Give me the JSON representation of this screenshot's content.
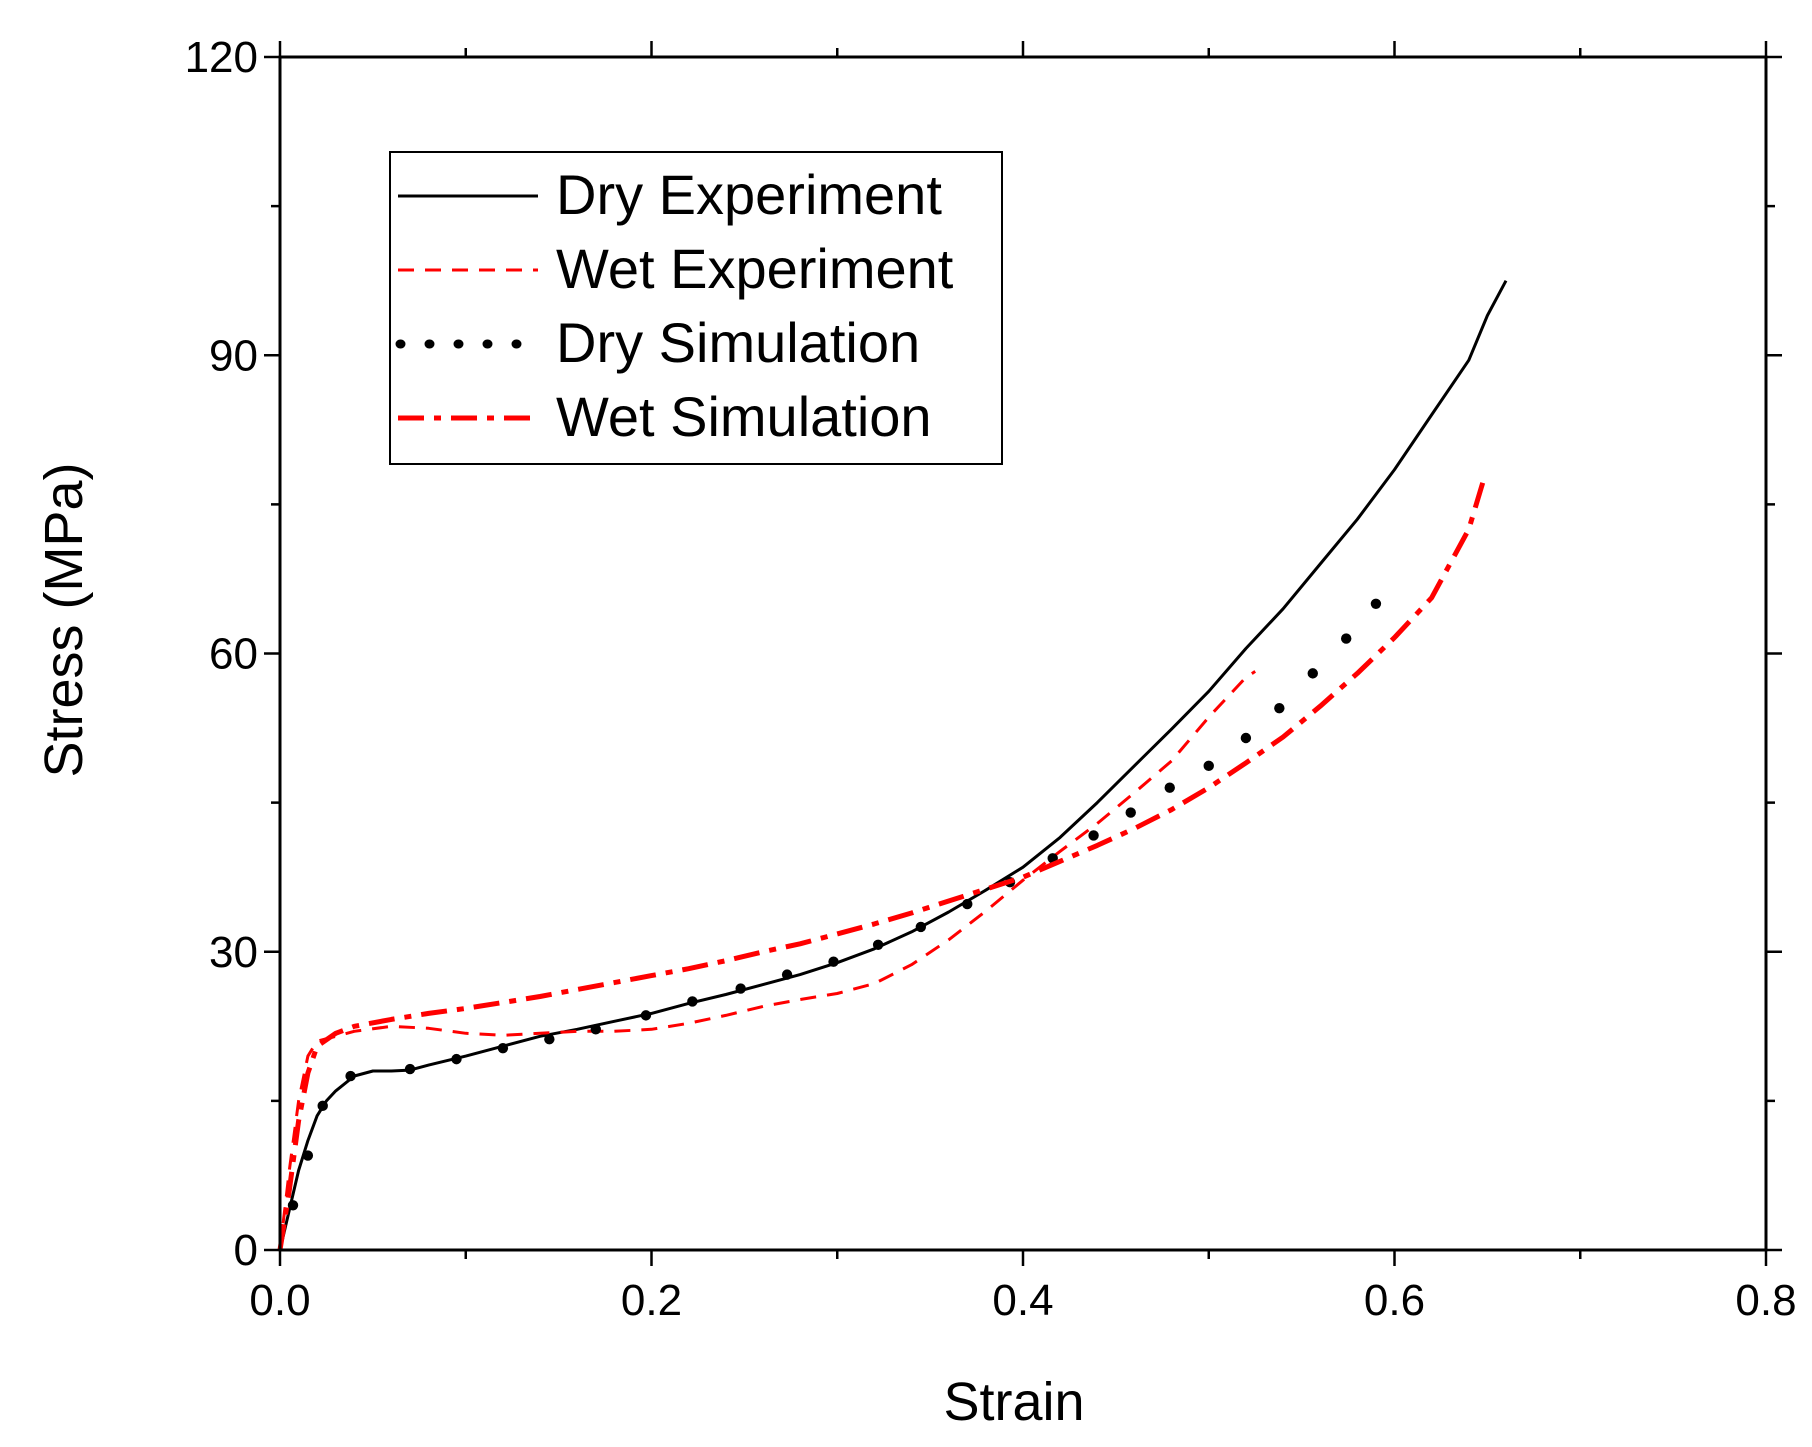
{
  "chart_data": {
    "type": "line",
    "title": "",
    "xlabel": "Strain",
    "ylabel": "Stress (MPa)",
    "xlim": [
      0,
      0.8
    ],
    "ylim": [
      0,
      120
    ],
    "x_ticks": [
      0,
      0.2,
      0.4,
      0.6,
      0.8
    ],
    "x_tick_labels": [
      "0.0",
      "0.2",
      "0.4",
      "0.6",
      "0.8"
    ],
    "y_ticks": [
      0,
      30,
      60,
      90,
      120
    ],
    "y_tick_labels": [
      "0",
      "30",
      "60",
      "90",
      "120"
    ],
    "x_minor_step": 0.1,
    "y_minor_step": 15,
    "grid": false,
    "legend_position": "top-left",
    "series": [
      {
        "name": "Dry Experiment",
        "color": "#000000",
        "style": "solid",
        "x": [
          0,
          0.005,
          0.01,
          0.015,
          0.02,
          0.025,
          0.03,
          0.04,
          0.05,
          0.06,
          0.07,
          0.08,
          0.1,
          0.12,
          0.14,
          0.16,
          0.18,
          0.2,
          0.22,
          0.24,
          0.26,
          0.28,
          0.3,
          0.32,
          0.34,
          0.36,
          0.38,
          0.4,
          0.42,
          0.44,
          0.46,
          0.48,
          0.5,
          0.52,
          0.54,
          0.56,
          0.58,
          0.6,
          0.62,
          0.64,
          0.65,
          0.66
        ],
        "y": [
          0,
          4,
          8,
          11,
          13.5,
          15,
          16,
          17.5,
          18,
          18,
          18.1,
          18.6,
          19.5,
          20.5,
          21.5,
          22.2,
          23,
          23.8,
          24.8,
          25.7,
          26.7,
          27.7,
          28.9,
          30.3,
          32,
          34,
          36.2,
          38.5,
          41.5,
          45,
          48.7,
          52.4,
          56.2,
          60.5,
          64.5,
          69,
          73.5,
          78.5,
          84,
          89.5,
          94,
          97.5
        ]
      },
      {
        "name": "Wet Experiment",
        "color": "#ff0000",
        "style": "dashed",
        "x": [
          0,
          0.005,
          0.01,
          0.015,
          0.02,
          0.03,
          0.04,
          0.06,
          0.08,
          0.1,
          0.12,
          0.14,
          0.16,
          0.18,
          0.2,
          0.22,
          0.24,
          0.26,
          0.28,
          0.3,
          0.32,
          0.34,
          0.36,
          0.38,
          0.4,
          0.42,
          0.44,
          0.46,
          0.48,
          0.5,
          0.52,
          0.525
        ],
        "y": [
          0,
          8,
          15,
          19.5,
          21,
          21.5,
          22,
          22.5,
          22.3,
          21.8,
          21.6,
          21.8,
          22,
          22,
          22.2,
          22.8,
          23.6,
          24.5,
          25.2,
          25.8,
          26.8,
          28.7,
          31.2,
          34.1,
          37.2,
          40.1,
          42.9,
          46,
          49.2,
          53.6,
          57.6,
          58.2
        ]
      },
      {
        "name": "Dry Simulation",
        "color": "#000000",
        "style": "dotted",
        "x": [
          0.007,
          0.015,
          0.023,
          0.038,
          0.07,
          0.095,
          0.12,
          0.145,
          0.17,
          0.197,
          0.222,
          0.248,
          0.273,
          0.298,
          0.322,
          0.345,
          0.37,
          0.393,
          0.416,
          0.438,
          0.458,
          0.479,
          0.5,
          0.52,
          0.538,
          0.556,
          0.574,
          0.59
        ],
        "y": [
          4.5,
          9.5,
          14.5,
          17.5,
          18.2,
          19.2,
          20.3,
          21.2,
          22.2,
          23.6,
          25,
          26.3,
          27.7,
          29,
          30.7,
          32.5,
          34.8,
          37,
          39.4,
          41.7,
          44,
          46.5,
          48.7,
          51.5,
          54.5,
          58,
          61.5,
          65
        ]
      },
      {
        "name": "Wet Simulation",
        "color": "#ff0000",
        "style": "dashdot",
        "x": [
          0,
          0.005,
          0.01,
          0.015,
          0.02,
          0.03,
          0.04,
          0.06,
          0.08,
          0.1,
          0.12,
          0.14,
          0.16,
          0.18,
          0.2,
          0.22,
          0.24,
          0.26,
          0.28,
          0.3,
          0.32,
          0.34,
          0.36,
          0.38,
          0.4,
          0.42,
          0.44,
          0.46,
          0.48,
          0.5,
          0.52,
          0.54,
          0.56,
          0.58,
          0.6,
          0.62,
          0.64,
          0.648
        ],
        "y": [
          0,
          6,
          13,
          17.8,
          20.5,
          21.8,
          22.5,
          23.2,
          23.8,
          24.3,
          24.9,
          25.5,
          26.2,
          26.9,
          27.6,
          28.3,
          29.1,
          30,
          30.8,
          31.8,
          32.8,
          33.9,
          35.1,
          36.3,
          37.5,
          39.1,
          40.7,
          42.4,
          44.3,
          46.5,
          49,
          51.6,
          54.7,
          58,
          61.6,
          65.6,
          72.5,
          77.5
        ]
      }
    ]
  }
}
